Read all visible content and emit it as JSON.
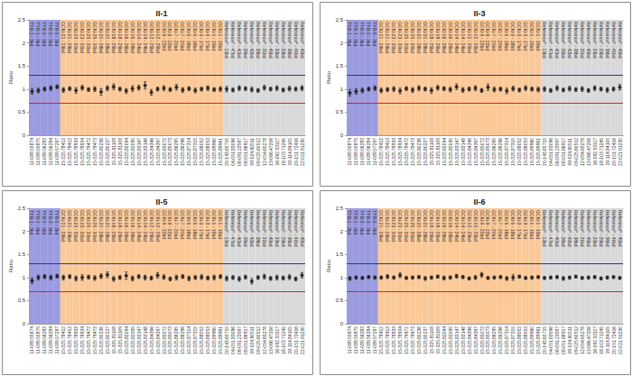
{
  "chart_data": [
    {
      "type": "scatter",
      "title": "II-1",
      "y_label": "Ratio",
      "ylim": [
        0,
        2.5
      ],
      "yticks": [
        0,
        0.5,
        1,
        1.5,
        2,
        2.5
      ],
      "grid": false,
      "color": "#111111",
      "marker": "circle",
      "categories": [
        "11-089.55874",
        "11-089.55875",
        "11-089.56283",
        "11-089.56284",
        "11-089.57297",
        "15-325.78412",
        "15-325.78413",
        "15-325.78933",
        "15-325.78934",
        "15-325.79472",
        "15-325.79473",
        "15-325.80236",
        "15-325.80237",
        "15-325.81108",
        "15-325.81109",
        "15-325.82094",
        "15-325.82095",
        "15-325.83147",
        "15-325.83148",
        "15-325.84396",
        "15-325.84397",
        "15-325.85072",
        "15-325.85073",
        "15-325.86295",
        "15-325.86296",
        "15-325.87314",
        "15-325.87315",
        "15-325.88052",
        "15-325.88053",
        "15-325.89960",
        "15-325.89961",
        "20-143.65715",
        "04-051.83096",
        "06-091.23597",
        "08-051.86917",
        "09-024.60511",
        "09-025.60512",
        "12-054.65278",
        "13-066.47206",
        "16-092.53117",
        "18-103.71245",
        "19-114.84105",
        "20-151.72416",
        "22-021.91230"
      ],
      "top_labels": [
        "TYR-1 - 3bd",
        "TYR-1 - 3bd",
        "TYR-3 - 3bd",
        "TYR-3 - 3bd",
        "TYR-5 - 3bd",
        "GCKi-21 - 29bd",
        "GCKi-21 - 29bd",
        "GCKi-23 - 30bd",
        "GCKi-23 - 30bd",
        "GCKi-25 - 30bd",
        "GCKi-25 - 30bd",
        "GCKi-20 - 28bd",
        "GCKi-20 - 28bd",
        "GCKi-18 - 25bd",
        "GCKi-18 - 25bd",
        "GCKi-16 - 26bd",
        "GCKi-16 - 26bd",
        "GCKi-14 - 24bd",
        "GCKi-14 - 24bd",
        "GCKi-12 - 25bd",
        "GCKi-12 - 25bd",
        "GCKi-9 - 22bd",
        "GCKi-9 - 22bd",
        "GCKi-7 - 20bd",
        "GCKi-7 - 20bd",
        "GCKi-5 - 18bd",
        "GCKi-5 - 18bd",
        "GCKi-3 - 17bd",
        "GCKi-3 - 17bd",
        "GCKi-1 - 15bd",
        "GCKi-1 - 15bd",
        "Reference* - 13bd",
        "Reference* - 47bd",
        "Reference* - 40bd",
        "Reference* - 26bd",
        "Reference* - 42bd",
        "Reference* - 38bd",
        "Reference* - 31bd",
        "Reference* - 45bd",
        "Reference* - 33bd",
        "Reference* - 29bd",
        "Reference* - 36bd",
        "Reference* - 41bd",
        "Reference* - 45bd"
      ],
      "bands": [
        {
          "from": "11-089.55874",
          "to": "11-089.57297",
          "color": "#9b9be0"
        },
        {
          "from": "15-325.78412",
          "to": "15-325.89961",
          "color": "#fbc898"
        },
        {
          "from": "20-143.65715",
          "to": "22-021.91230",
          "color": "#d9d9d9"
        }
      ],
      "thresholds": [
        {
          "value": 1.3,
          "color": "#1f3a93"
        },
        {
          "value": 0.7,
          "color": "#e02020"
        }
      ],
      "values": [
        0.95,
        0.97,
        1.0,
        1.02,
        1.05,
        0.98,
        1.01,
        0.97,
        1.03,
        0.99,
        1.0,
        0.94,
        1.02,
        1.05,
        1.0,
        0.96,
        1.01,
        1.03,
        1.08,
        0.93,
        1.0,
        1.02,
        0.99,
        1.04,
        0.98,
        1.01,
        0.97,
        1.0,
        1.02,
        0.99,
        1.0,
        1.0,
        0.98,
        1.02,
        1.01,
        0.99,
        0.97,
        1.03,
        1.0,
        1.02,
        0.98,
        1.01,
        1.0,
        1.02
      ],
      "errors": [
        0.06,
        0.05,
        0.04,
        0.05,
        0.04,
        0.05,
        0.04,
        0.06,
        0.05,
        0.04,
        0.05,
        0.07,
        0.05,
        0.06,
        0.04,
        0.05,
        0.06,
        0.05,
        0.08,
        0.06,
        0.04,
        0.05,
        0.04,
        0.06,
        0.05,
        0.04,
        0.05,
        0.04,
        0.05,
        0.04,
        0.05,
        0.06,
        0.04,
        0.05,
        0.04,
        0.05,
        0.04,
        0.05,
        0.04,
        0.05,
        0.04,
        0.05,
        0.04,
        0.05
      ]
    },
    {
      "type": "scatter",
      "title": "II-3",
      "y_label": "Ratio",
      "ylim": [
        0,
        2.5
      ],
      "yticks": [
        0,
        0.5,
        1,
        1.5,
        2,
        2.5
      ],
      "grid": false,
      "color": "#111111",
      "marker": "circle",
      "categories": [
        "11-089.55874",
        "11-089.55875",
        "11-089.56283",
        "11-089.56284",
        "11-089.57297",
        "15-325.78412",
        "15-325.78413",
        "15-325.78933",
        "15-325.78934",
        "15-325.79472",
        "15-325.79473",
        "15-325.80236",
        "15-325.80237",
        "15-325.81108",
        "15-325.81109",
        "15-325.82094",
        "15-325.82095",
        "15-325.83147",
        "15-325.83148",
        "15-325.84396",
        "15-325.84397",
        "15-325.85072",
        "15-325.85073",
        "15-325.86295",
        "15-325.86296",
        "15-325.87314",
        "15-325.87315",
        "15-325.88052",
        "15-325.88053",
        "15-325.89960",
        "15-325.89961",
        "20-143.65715",
        "04-051.83096",
        "06-091.23597",
        "08-051.86917",
        "09-024.60511",
        "09-025.60512",
        "12-054.65278",
        "13-066.47206",
        "16-092.53117",
        "18-103.71245",
        "19-114.84105",
        "20-151.72416",
        "22-021.91230"
      ],
      "top_labels": [
        "TYR-1 - 3bd",
        "TYR-1 - 3bd",
        "TYR-3 - 3bd",
        "TYR-3 - 3bd",
        "TYR-5 - 3bd",
        "GCKi-21 - 29bd",
        "GCKi-21 - 29bd",
        "GCKi-23 - 30bd",
        "GCKi-23 - 30bd",
        "GCKi-25 - 30bd",
        "GCKi-25 - 30bd",
        "GCKi-20 - 28bd",
        "GCKi-20 - 28bd",
        "GCKi-18 - 25bd",
        "GCKi-18 - 25bd",
        "GCKi-16 - 26bd",
        "GCKi-16 - 26bd",
        "GCKi-14 - 24bd",
        "GCKi-14 - 24bd",
        "GCKi-12 - 25bd",
        "GCKi-12 - 25bd",
        "GCKi-9 - 22bd",
        "GCKi-9 - 22bd",
        "GCKi-7 - 20bd",
        "GCKi-7 - 20bd",
        "GCKi-5 - 18bd",
        "GCKi-5 - 18bd",
        "GCKi-3 - 17bd",
        "GCKi-3 - 17bd",
        "GCKi-1 - 15bd",
        "GCKi-1 - 15bd",
        "Reference* - 13bd",
        "Reference* - 47bd",
        "Reference* - 40bd",
        "Reference* - 26bd",
        "Reference* - 42bd",
        "Reference* - 38bd",
        "Reference* - 31bd",
        "Reference* - 45bd",
        "Reference* - 33bd",
        "Reference* - 29bd",
        "Reference* - 36bd",
        "Reference* - 41bd",
        "Reference* - 45bd"
      ],
      "bands": [
        {
          "from": "11-089.55874",
          "to": "11-089.57297",
          "color": "#9b9be0"
        },
        {
          "from": "15-325.78412",
          "to": "15-325.89961",
          "color": "#fbc898"
        },
        {
          "from": "20-143.65715",
          "to": "22-021.91230",
          "color": "#d9d9d9"
        }
      ],
      "thresholds": [
        {
          "value": 1.3,
          "color": "#1f3a93"
        },
        {
          "value": 0.7,
          "color": "#e02020"
        }
      ],
      "values": [
        0.92,
        0.95,
        0.97,
        1.0,
        1.02,
        0.97,
        0.99,
        1.0,
        0.96,
        1.01,
        0.98,
        1.02,
        1.0,
        0.97,
        1.03,
        1.01,
        0.99,
        1.05,
        0.98,
        1.0,
        1.02,
        0.97,
        1.04,
        0.99,
        1.0,
        0.96,
        1.01,
        0.98,
        1.02,
        1.0,
        0.99,
        1.0,
        0.97,
        1.02,
        0.98,
        1.01,
        0.99,
        1.0,
        0.97,
        1.02,
        1.0,
        0.98,
        1.0,
        1.04
      ],
      "errors": [
        0.07,
        0.06,
        0.05,
        0.04,
        0.05,
        0.05,
        0.04,
        0.05,
        0.06,
        0.04,
        0.05,
        0.05,
        0.04,
        0.06,
        0.05,
        0.04,
        0.05,
        0.06,
        0.05,
        0.04,
        0.05,
        0.04,
        0.07,
        0.05,
        0.04,
        0.06,
        0.05,
        0.04,
        0.05,
        0.04,
        0.05,
        0.05,
        0.04,
        0.05,
        0.04,
        0.05,
        0.04,
        0.05,
        0.04,
        0.05,
        0.04,
        0.05,
        0.04,
        0.06
      ]
    },
    {
      "type": "scatter",
      "title": "II-5",
      "y_label": "Ratio",
      "ylim": [
        0,
        2.5
      ],
      "yticks": [
        0,
        0.5,
        1,
        1.5,
        2,
        2.5
      ],
      "grid": false,
      "color": "#111111",
      "marker": "circle",
      "categories": [
        "11-089.55874",
        "11-089.55875",
        "11-089.56283",
        "11-089.56284",
        "11-089.57297",
        "15-325.78412",
        "15-325.78413",
        "15-325.78933",
        "15-325.78934",
        "15-325.79472",
        "15-325.79473",
        "15-325.80236",
        "15-325.80237",
        "15-325.81108",
        "15-325.81109",
        "15-325.82094",
        "15-325.82095",
        "15-325.83147",
        "15-325.83148",
        "15-325.84396",
        "15-325.84397",
        "15-325.85072",
        "15-325.85073",
        "15-325.86295",
        "15-325.86296",
        "15-325.87314",
        "15-325.87315",
        "15-325.88052",
        "15-325.88053",
        "15-325.89960",
        "15-325.89961",
        "20-143.65715",
        "04-051.83096",
        "06-091.23597",
        "08-051.86917",
        "09-024.60511",
        "09-025.60512",
        "12-054.65278",
        "13-066.47206",
        "16-092.53117",
        "18-103.71245",
        "19-114.84105",
        "20-151.72416",
        "22-021.91230"
      ],
      "top_labels": [
        "TYR-1 - 3bd",
        "TYR-1 - 3bd",
        "TYR-3 - 3bd",
        "TYR-3 - 3bd",
        "TYR-5 - 3bd",
        "GCKi-21 - 29bd",
        "GCKi-21 - 29bd",
        "GCKi-23 - 30bd",
        "GCKi-23 - 30bd",
        "GCKi-25 - 30bd",
        "GCKi-25 - 30bd",
        "GCKi-20 - 28bd",
        "GCKi-20 - 28bd",
        "GCKi-18 - 25bd",
        "GCKi-18 - 25bd",
        "GCKi-16 - 26bd",
        "GCKi-16 - 26bd",
        "GCKi-14 - 24bd",
        "GCKi-14 - 24bd",
        "GCKi-12 - 25bd",
        "GCKi-12 - 25bd",
        "GCKi-9 - 22bd",
        "GCKi-9 - 22bd",
        "GCKi-7 - 20bd",
        "GCKi-7 - 20bd",
        "GCKi-5 - 18bd",
        "GCKi-5 - 18bd",
        "GCKi-3 - 17bd",
        "GCKi-3 - 17bd",
        "GCKi-1 - 15bd",
        "GCKi-1 - 15bd",
        "Reference* - 13bd",
        "Reference* - 47bd",
        "Reference* - 40bd",
        "Reference* - 26bd",
        "Reference* - 42bd",
        "Reference* - 38bd",
        "Reference* - 31bd",
        "Reference* - 45bd",
        "Reference* - 33bd",
        "Reference* - 29bd",
        "Reference* - 36bd",
        "Reference* - 41bd",
        "Reference* - 45bd"
      ],
      "bands": [
        {
          "from": "11-089.55874",
          "to": "11-089.57297",
          "color": "#9b9be0"
        },
        {
          "from": "15-325.78412",
          "to": "15-325.89961",
          "color": "#fbc898"
        },
        {
          "from": "20-143.65715",
          "to": "22-021.91230",
          "color": "#d9d9d9"
        }
      ],
      "thresholds": [
        {
          "value": 1.3,
          "color": "#1f3a93"
        },
        {
          "value": 0.7,
          "color": "#e02020"
        }
      ],
      "values": [
        0.93,
        1.0,
        1.02,
        1.0,
        1.03,
        1.0,
        1.02,
        0.98,
        1.0,
        1.01,
        0.99,
        1.03,
        1.06,
        0.97,
        1.0,
        1.04,
        0.98,
        1.02,
        1.0,
        0.99,
        1.05,
        1.01,
        0.97,
        1.0,
        1.02,
        0.98,
        1.0,
        1.01,
        0.99,
        1.0,
        1.02,
        0.98,
        1.0,
        0.97,
        1.01,
        0.92,
        1.0,
        1.02,
        0.98,
        1.0,
        0.99,
        1.01,
        0.97,
        1.05
      ],
      "errors": [
        0.06,
        0.05,
        0.04,
        0.05,
        0.04,
        0.05,
        0.04,
        0.05,
        0.06,
        0.04,
        0.05,
        0.05,
        0.06,
        0.05,
        0.04,
        0.08,
        0.05,
        0.04,
        0.05,
        0.04,
        0.06,
        0.05,
        0.04,
        0.05,
        0.04,
        0.05,
        0.04,
        0.05,
        0.04,
        0.05,
        0.04,
        0.05,
        0.04,
        0.05,
        0.04,
        0.06,
        0.04,
        0.05,
        0.04,
        0.05,
        0.04,
        0.05,
        0.04,
        0.06
      ]
    },
    {
      "type": "scatter",
      "title": "II-6",
      "y_label": "Ratio",
      "ylim": [
        0,
        2.5
      ],
      "yticks": [
        0,
        0.5,
        1,
        1.5,
        2,
        2.5
      ],
      "grid": false,
      "color": "#111111",
      "marker": "circle",
      "categories": [
        "11-089.55874",
        "11-089.55875",
        "11-089.56283",
        "11-089.56284",
        "11-089.57297",
        "15-325.78412",
        "15-325.78413",
        "15-325.78933",
        "15-325.78934",
        "15-325.79472",
        "15-325.79473",
        "15-325.80236",
        "15-325.80237",
        "15-325.81108",
        "15-325.81109",
        "15-325.82094",
        "15-325.82095",
        "15-325.83147",
        "15-325.83148",
        "15-325.84396",
        "15-325.84397",
        "15-325.85072",
        "15-325.85073",
        "15-325.86295",
        "15-325.86296",
        "15-325.87314",
        "15-325.87315",
        "15-325.88052",
        "15-325.88053",
        "15-325.89960",
        "15-325.89961",
        "20-143.65715",
        "04-051.83096",
        "06-091.23597",
        "08-051.86917",
        "09-024.60511",
        "09-025.60512",
        "12-054.65278",
        "13-066.47206",
        "16-092.53117",
        "18-103.71245",
        "19-114.84105",
        "20-151.72416",
        "22-021.91230"
      ],
      "top_labels": [
        "TYR-1 - 3bd",
        "TYR-1 - 3bd",
        "TYR-3 - 3bd",
        "TYR-3 - 3bd",
        "TYR-5 - 3bd",
        "GCKi-21 - 29bd",
        "GCKi-21 - 29bd",
        "GCKi-23 - 30bd",
        "GCKi-23 - 30bd",
        "GCKi-25 - 30bd",
        "GCKi-25 - 30bd",
        "GCKi-20 - 28bd",
        "GCKi-20 - 28bd",
        "GCKi-18 - 25bd",
        "GCKi-18 - 25bd",
        "GCKi-16 - 26bd",
        "GCKi-16 - 26bd",
        "GCKi-14 - 24bd",
        "GCKi-14 - 24bd",
        "GCKi-12 - 25bd",
        "GCKi-12 - 25bd",
        "GCKi-9 - 22bd",
        "GCKi-9 - 22bd",
        "GCKi-7 - 20bd",
        "GCKi-7 - 20bd",
        "GCKi-5 - 18bd",
        "GCKi-5 - 18bd",
        "GCKi-3 - 17bd",
        "GCKi-3 - 17bd",
        "GCKi-1 - 15bd",
        "GCKi-1 - 15bd",
        "Reference* - 13bd",
        "Reference* - 47bd",
        "Reference* - 40bd",
        "Reference* - 26bd",
        "Reference* - 42bd",
        "Reference* - 38bd",
        "Reference* - 31bd",
        "Reference* - 45bd",
        "Reference* - 33bd",
        "Reference* - 29bd",
        "Reference* - 36bd",
        "Reference* - 41bd",
        "Reference* - 45bd"
      ],
      "bands": [
        {
          "from": "11-089.55874",
          "to": "11-089.57297",
          "color": "#9b9be0"
        },
        {
          "from": "15-325.78412",
          "to": "15-325.89961",
          "color": "#fbc898"
        },
        {
          "from": "20-143.65715",
          "to": "22-021.91230",
          "color": "#d9d9d9"
        }
      ],
      "thresholds": [
        {
          "value": 1.3,
          "color": "#1f3a93"
        },
        {
          "value": 0.7,
          "color": "#e02020"
        }
      ],
      "values": [
        0.98,
        1.0,
        0.99,
        1.01,
        1.0,
        1.0,
        1.02,
        1.0,
        1.05,
        0.99,
        1.0,
        1.01,
        0.98,
        1.0,
        1.02,
        0.99,
        1.0,
        1.03,
        1.01,
        0.98,
        1.0,
        1.06,
        0.99,
        1.0,
        1.01,
        0.98,
        1.0,
        1.02,
        0.99,
        1.0,
        1.01,
        0.99,
        1.0,
        1.01,
        0.98,
        1.0,
        1.02,
        0.99,
        1.0,
        1.01,
        0.98,
        1.0,
        1.01,
        0.99
      ],
      "errors": [
        0.04,
        0.03,
        0.03,
        0.03,
        0.03,
        0.03,
        0.04,
        0.03,
        0.05,
        0.03,
        0.03,
        0.03,
        0.04,
        0.03,
        0.03,
        0.04,
        0.03,
        0.04,
        0.03,
        0.03,
        0.04,
        0.05,
        0.03,
        0.03,
        0.03,
        0.04,
        0.06,
        0.03,
        0.03,
        0.03,
        0.03,
        0.03,
        0.03,
        0.03,
        0.04,
        0.03,
        0.03,
        0.03,
        0.03,
        0.03,
        0.03,
        0.03,
        0.03,
        0.03
      ]
    }
  ]
}
